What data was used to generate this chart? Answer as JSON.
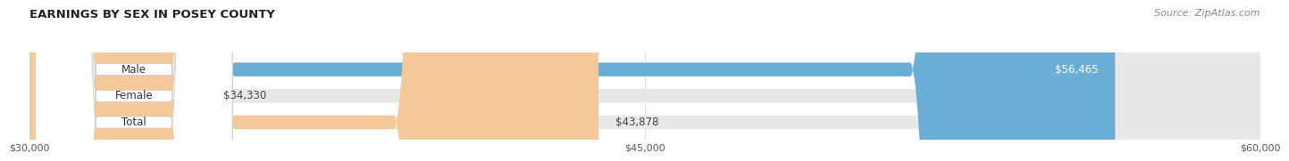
{
  "title": "EARNINGS BY SEX IN POSEY COUNTY",
  "source": "Source: ZipAtlas.com",
  "categories": [
    "Male",
    "Female",
    "Total"
  ],
  "values": [
    56465,
    34330,
    43878
  ],
  "x_min": 30000,
  "x_max": 60000,
  "bar_colors": [
    "#6aaed6",
    "#f4a0b5",
    "#f5c89a"
  ],
  "bar_track_color": "#e8e8e8",
  "value_labels": [
    "$56,465",
    "$34,330",
    "$43,878"
  ],
  "tick_labels": [
    "$30,000",
    "$45,000",
    "$60,000"
  ],
  "tick_values": [
    30000,
    45000,
    60000
  ],
  "bar_height": 0.52,
  "background_color": "#ffffff",
  "title_fontsize": 9.5,
  "label_fontsize": 8.5,
  "value_fontsize": 8.5,
  "source_fontsize": 8
}
